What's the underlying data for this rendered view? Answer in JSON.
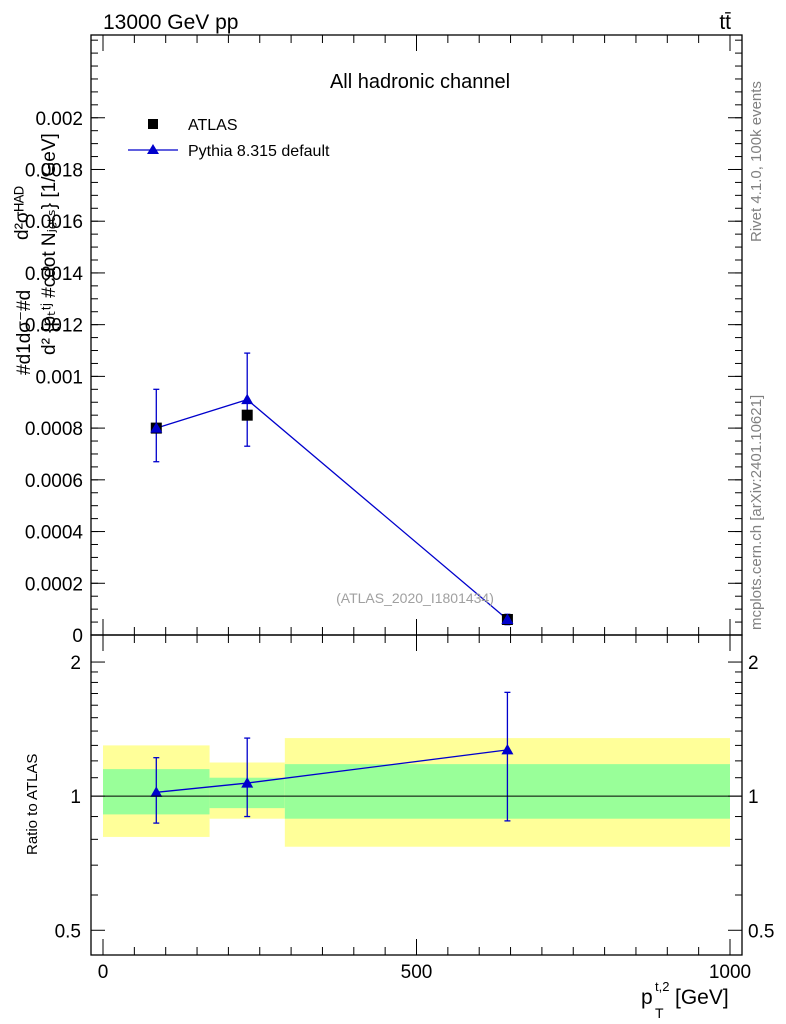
{
  "header": {
    "left": "13000 GeV pp",
    "right": "tt̄"
  },
  "side_labels": {
    "rivet": "Rivet 4.1.0,  100k events",
    "mcplots": "mcplots.cern.ch [arXiv:2401.10621]"
  },
  "chart_data": [
    {
      "type": "scatter",
      "title": "All hadronic channel",
      "ylabel": "#d1d^2σ^{\\rm had}σ#dd^2 {p_T^{t,2}}#cdot N_{jets} [1/GeV]",
      "ylabel_lines": [
        "#d1dσ⁻#d",
        "d²σᴴᴬᴰ",
        "d² {pₜᵗʲ #cdot Nⱼₑₜₛ} [1/GeV]"
      ],
      "xlabel": "",
      "watermark": "(ATLAS_2020_I1801434)",
      "ylim": [
        0,
        0.00232
      ],
      "xlim": [
        -20,
        1000
      ],
      "y_ticks": [
        {
          "value": 0,
          "label": "0"
        },
        {
          "value": 0.0002,
          "label": "0.0002"
        },
        {
          "value": 0.0004,
          "label": "0.0004"
        },
        {
          "value": 0.0006,
          "label": "0.0006"
        },
        {
          "value": 0.0008,
          "label": "0.0008"
        },
        {
          "value": 0.001,
          "label": "0.001"
        },
        {
          "value": 0.0012,
          "label": "0.0012"
        },
        {
          "value": 0.0014,
          "label": "0.0014"
        },
        {
          "value": 0.0016,
          "label": "0.0016"
        },
        {
          "value": 0.0018,
          "label": "0.0018"
        },
        {
          "value": 0.002,
          "label": "0.002"
        }
      ],
      "legend": [
        {
          "name": "ATLAS",
          "marker": "square",
          "color": "#000000"
        },
        {
          "name": "Pythia 8.315 default",
          "marker": "triangle",
          "color": "#0000cc"
        }
      ],
      "series": [
        {
          "name": "ATLAS",
          "color": "#000000",
          "points": [
            {
              "x": 85,
              "y": 0.0008
            },
            {
              "x": 230,
              "y": 0.00085
            },
            {
              "x": 645,
              "y": 6e-05
            }
          ]
        },
        {
          "name": "Pythia 8.315 default",
          "color": "#0000cc",
          "points": [
            {
              "x": 85,
              "y": 0.0008,
              "err_lo": 0.00013,
              "err_hi": 0.00015
            },
            {
              "x": 230,
              "y": 0.00091,
              "err_lo": 0.00018,
              "err_hi": 0.00018
            },
            {
              "x": 645,
              "y": 6e-05,
              "err_lo": 2e-05,
              "err_hi": 2e-05
            }
          ]
        }
      ]
    },
    {
      "type": "scatter",
      "title": "",
      "ylabel": "Ratio to ATLAS",
      "xlabel": "p_T^{t,2} [GeV]",
      "xlabel_main": "p",
      "xlabel_sub": "T",
      "xlabel_sup": "t,2",
      "xlabel_unit": " [GeV]",
      "ylim": [
        0.44,
        2.3
      ],
      "y_log": true,
      "xlim": [
        -20,
        1000
      ],
      "x_ticks": [
        {
          "value": 0,
          "label": "0"
        },
        {
          "value": 500,
          "label": "500"
        },
        {
          "value": 1000,
          "label": "1000"
        }
      ],
      "y_ticks": [
        {
          "value": 0.5,
          "label": "0.5"
        },
        {
          "value": 1,
          "label": "1"
        },
        {
          "value": 2,
          "label": "2"
        }
      ],
      "bands": [
        {
          "x0": 0,
          "x1": 170,
          "yellow": [
            0.81,
            1.3
          ],
          "green": [
            0.91,
            1.15
          ]
        },
        {
          "x0": 170,
          "x1": 290,
          "yellow": [
            0.89,
            1.19
          ],
          "green": [
            0.94,
            1.1
          ]
        },
        {
          "x0": 290,
          "x1": 1000,
          "yellow": [
            0.77,
            1.35
          ],
          "green": [
            0.89,
            1.18
          ]
        }
      ],
      "series": [
        {
          "name": "Pythia 8.315 default",
          "color": "#0000cc",
          "points": [
            {
              "x": 85,
              "y": 1.02,
              "err_lo": 0.15,
              "err_hi": 0.2
            },
            {
              "x": 230,
              "y": 1.07,
              "err_lo": 0.17,
              "err_hi": 0.28
            },
            {
              "x": 645,
              "y": 1.27,
              "err_lo": 0.39,
              "err_hi": 0.44
            }
          ]
        }
      ]
    }
  ]
}
